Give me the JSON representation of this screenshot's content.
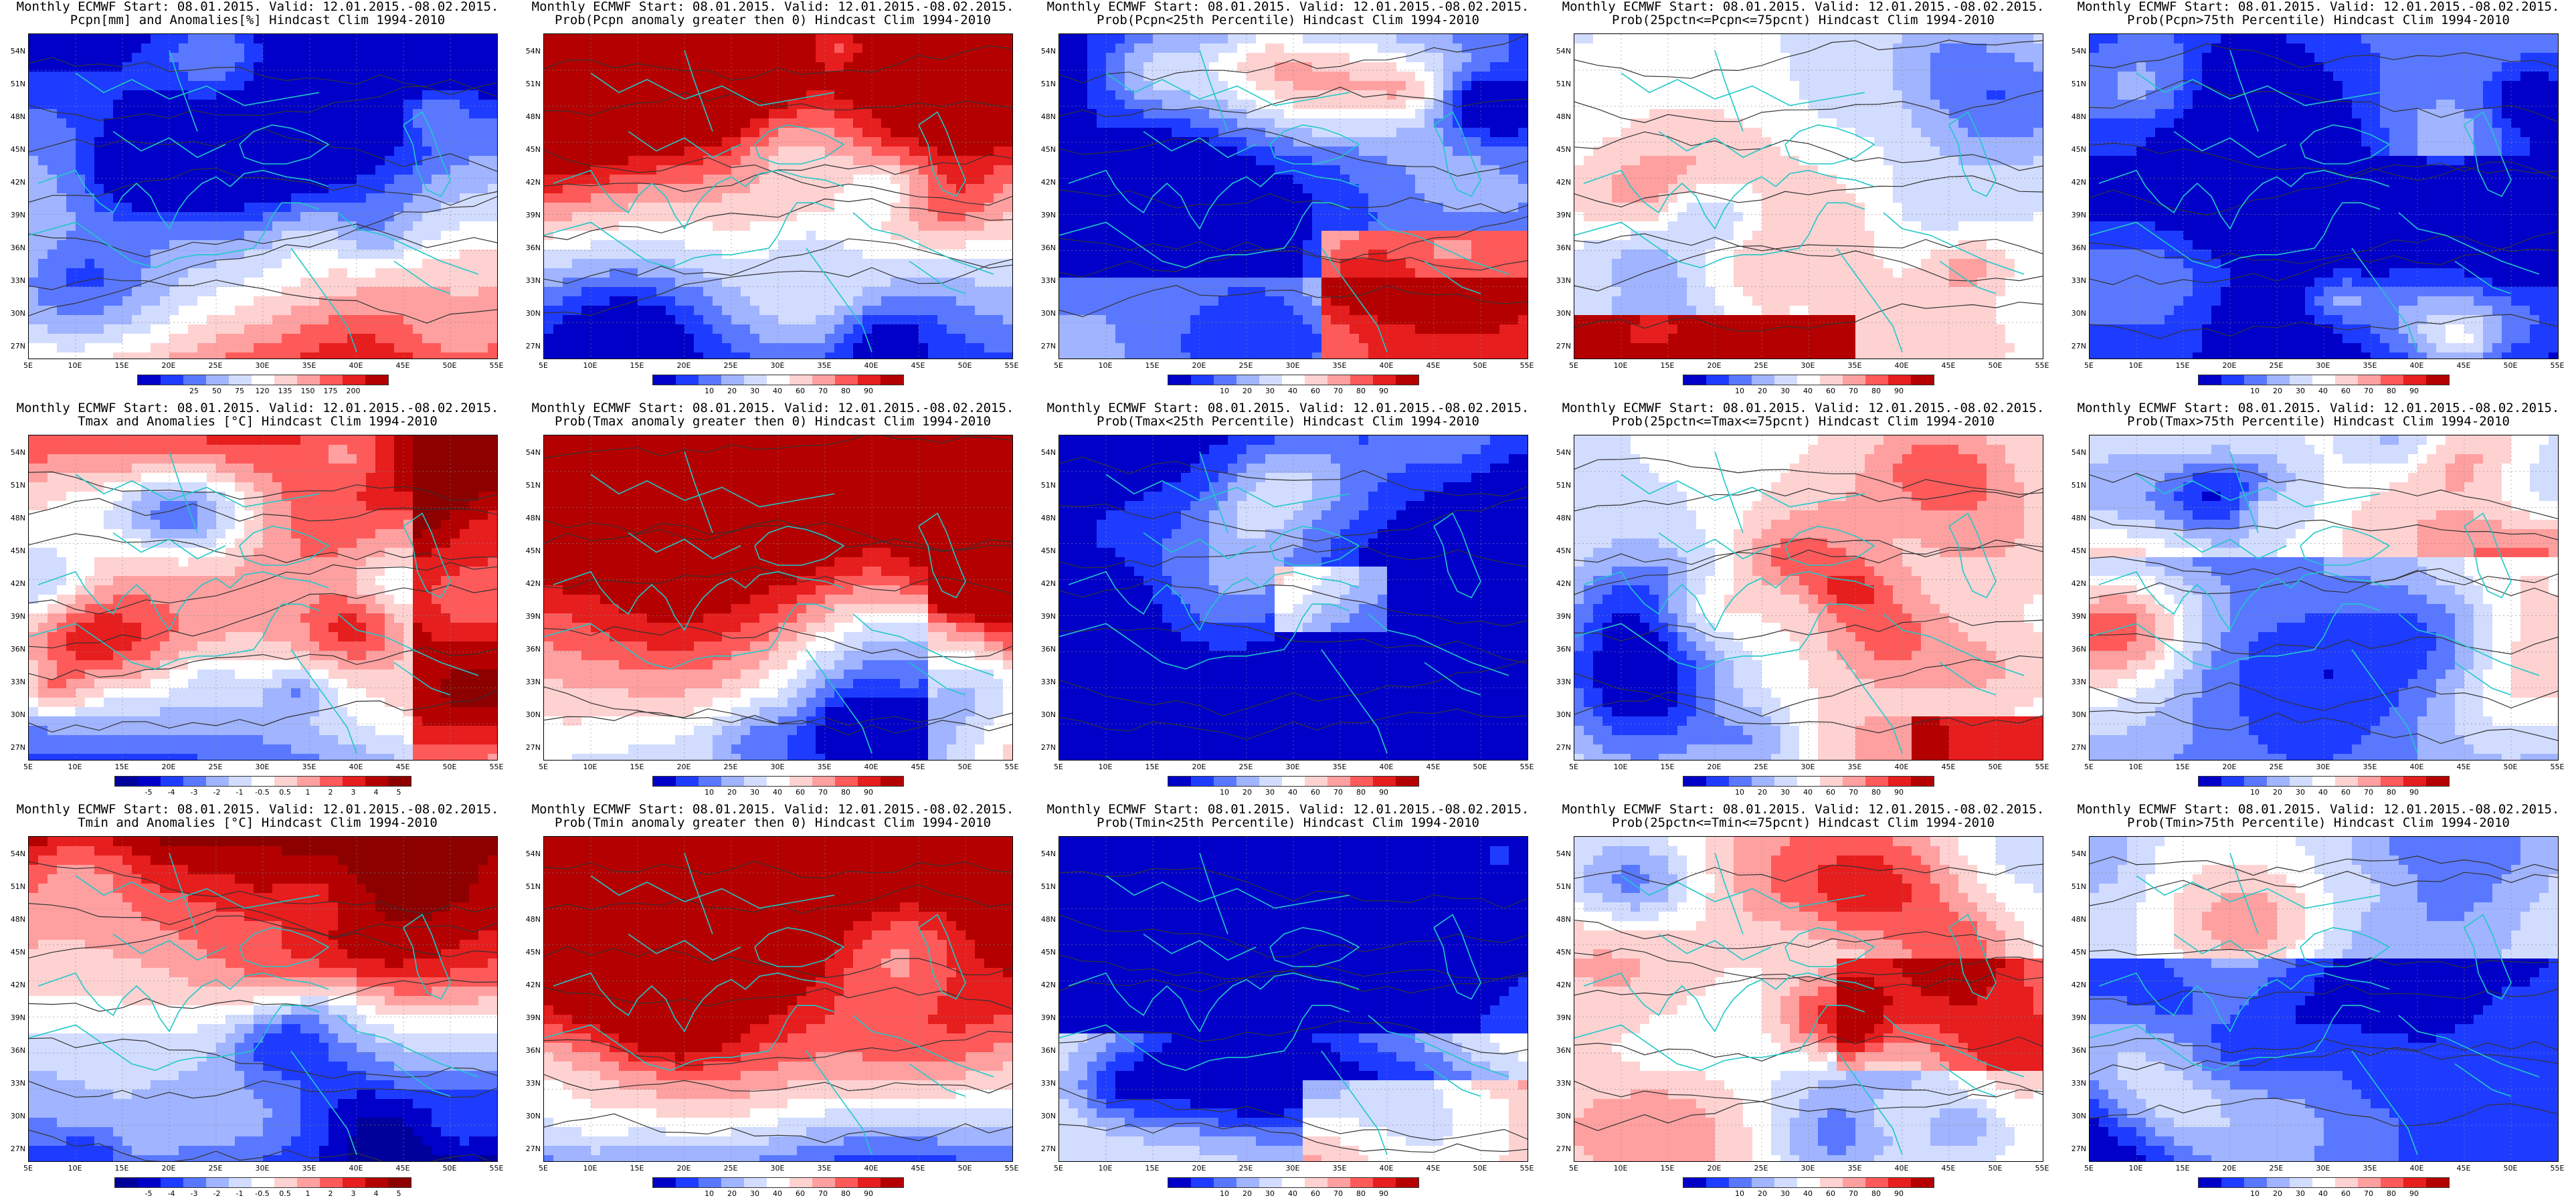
{
  "figure": {
    "panels": [
      {
        "line1": "Monthly ECMWF Start: 08.01.2015. Valid: 12.01.2015.-08.02.2015.",
        "line2": "Pcpn[mm] and Anomalies[%] Hindcast Clim 1994-2010",
        "scale": "anom_pcpn",
        "pattern": "p_anom"
      },
      {
        "line1": "Monthly ECMWF Start: 08.01.2015. Valid: 12.01.2015.-08.02.2015.",
        "line2": "Prob(Pcpn anomaly greater then 0) Hindcast Clim 1994-2010",
        "scale": "prob",
        "pattern": "p_pos"
      },
      {
        "line1": "Monthly ECMWF Start: 08.01.2015. Valid: 12.01.2015.-08.02.2015.",
        "line2": "Prob(Pcpn<25th Percentile) Hindcast Clim 1994-2010",
        "scale": "prob",
        "pattern": "p_low"
      },
      {
        "line1": "Monthly ECMWF Start: 08.01.2015. Valid: 12.01.2015.-08.02.2015.",
        "line2": "Prob(25pctn<=Pcpn<=75pcnt) Hindcast Clim 1994-2010",
        "scale": "prob",
        "pattern": "p_mid"
      },
      {
        "line1": "Monthly ECMWF Start: 08.01.2015. Valid: 12.01.2015.-08.02.2015.",
        "line2": "Prob(Pcpn>75th Percentile) Hindcast Clim 1994-2010",
        "scale": "prob",
        "pattern": "p_high"
      },
      {
        "line1": "Monthly ECMWF Start: 08.01.2015. Valid: 12.01.2015.-08.02.2015.",
        "line2": "Tmax and Anomalies [°C] Hindcast Clim 1994-2010",
        "scale": "anom_temp",
        "pattern": "t_anom"
      },
      {
        "line1": "Monthly ECMWF Start: 08.01.2015. Valid: 12.01.2015.-08.02.2015.",
        "line2": "Prob(Tmax anomaly greater then 0) Hindcast Clim 1994-2010",
        "scale": "prob",
        "pattern": "t_pos"
      },
      {
        "line1": "Monthly ECMWF Start: 08.01.2015. Valid: 12.01.2015.-08.02.2015.",
        "line2": "Prob(Tmax<25th Percentile) Hindcast Clim 1994-2010",
        "scale": "prob",
        "pattern": "t_low"
      },
      {
        "line1": "Monthly ECMWF Start: 08.01.2015. Valid: 12.01.2015.-08.02.2015.",
        "line2": "Prob(25pctn<=Tmax<=75pcnt) Hindcast Clim 1994-2010",
        "scale": "prob",
        "pattern": "t_mid"
      },
      {
        "line1": "Monthly ECMWF Start: 08.01.2015. Valid: 12.01.2015.-08.02.2015.",
        "line2": "Prob(Tmax>75th Percentile) Hindcast Clim 1994-2010",
        "scale": "prob",
        "pattern": "t_high"
      },
      {
        "line1": "Monthly ECMWF Start: 08.01.2015. Valid: 12.01.2015.-08.02.2015.",
        "line2": "Tmin and Anomalies [°C] Hindcast Clim 1994-2010",
        "scale": "anom_temp",
        "pattern": "n_anom"
      },
      {
        "line1": "Monthly ECMWF Start: 08.01.2015. Valid: 12.01.2015.-08.02.2015.",
        "line2": "Prob(Tmin anomaly greater then 0) Hindcast Clim 1994-2010",
        "scale": "prob",
        "pattern": "n_pos"
      },
      {
        "line1": "Monthly ECMWF Start: 08.01.2015. Valid: 12.01.2015.-08.02.2015.",
        "line2": "Prob(Tmin<25th Percentile) Hindcast Clim 1994-2010",
        "scale": "prob",
        "pattern": "n_low"
      },
      {
        "line1": "Monthly ECMWF Start: 08.01.2015. Valid: 12.01.2015.-08.02.2015.",
        "line2": "Prob(25pctn<=Tmin<=75pcnt) Hindcast Clim 1994-2010",
        "scale": "prob",
        "pattern": "n_mid"
      },
      {
        "line1": "Monthly ECMWF Start: 08.01.2015. Valid: 12.01.2015.-08.02.2015.",
        "line2": "Prob(Tmin>75th Percentile) Hindcast Clim 1994-2010",
        "scale": "prob",
        "pattern": "n_high"
      }
    ],
    "lat_labels": [
      "54N",
      "51N",
      "48N",
      "45N",
      "42N",
      "39N",
      "36N",
      "33N",
      "30N",
      "27N"
    ],
    "lon_labels": [
      "5E",
      "10E",
      "15E",
      "20E",
      "25E",
      "30E",
      "35E",
      "40E",
      "45E",
      "50E",
      "55E"
    ],
    "scales": {
      "prob": {
        "ticks": [
          "10",
          "20",
          "30",
          "40",
          "60",
          "70",
          "80",
          "90"
        ],
        "colors": [
          "#0000c8",
          "#1e3cff",
          "#5a78ff",
          "#a0b4ff",
          "#d2dcff",
          "#ffffff",
          "#ffd2d2",
          "#ffa0a0",
          "#ff5a5a",
          "#e61e1e",
          "#b40000"
        ]
      },
      "anom_pcpn": {
        "ticks": [
          "25",
          "50",
          "75",
          "120",
          "135",
          "150",
          "175",
          "200"
        ],
        "colors": [
          "#0000c8",
          "#1e3cff",
          "#5a78ff",
          "#a0b4ff",
          "#d2dcff",
          "#ffffff",
          "#ffd2d2",
          "#ffa0a0",
          "#ff5a5a",
          "#e61e1e",
          "#b40000"
        ]
      },
      "anom_temp": {
        "ticks": [
          "-5",
          "-4",
          "-3",
          "-2",
          "-1",
          "-0.5",
          "0.5",
          "1",
          "2",
          "3",
          "4",
          "5"
        ],
        "colors": [
          "#00009b",
          "#0000c8",
          "#1e3cff",
          "#5a78ff",
          "#a0b4ff",
          "#d2dcff",
          "#ffffff",
          "#ffd2d2",
          "#ffa0a0",
          "#ff5a5a",
          "#e61e1e",
          "#b40000",
          "#8c0000"
        ]
      }
    },
    "colors": {
      "coast": "#20c8c8",
      "contour": "#333333"
    }
  }
}
